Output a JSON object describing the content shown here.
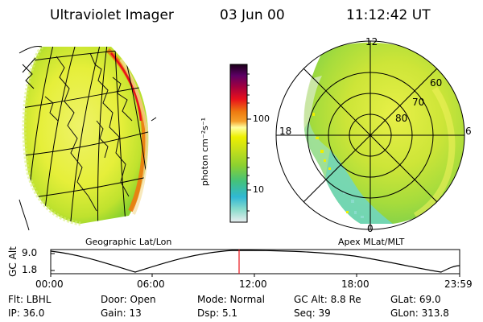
{
  "header": {
    "title": "Ultraviolet Imager",
    "date": "03 Jun 00",
    "time": "11:12:42 UT"
  },
  "geo_panel": {
    "label": "Geographic Lat/Lon"
  },
  "polar_panel": {
    "label": "Apex MLat/MLT",
    "mlt_labels": [
      "12",
      "18",
      "6",
      "0"
    ],
    "lat_labels": [
      "60",
      "70",
      "80"
    ]
  },
  "colorbar": {
    "unit": "photon cm⁻²s⁻¹",
    "ticks": [
      "100",
      "10"
    ],
    "colors": [
      "#e9eef0",
      "#8adccc",
      "#30b8d4",
      "#44c27a",
      "#8cd030",
      "#c6e01a",
      "#eef000",
      "#ffffa0",
      "#f5a02a",
      "#ee7a10",
      "#e8101c",
      "#a00040",
      "#5c0064",
      "#1a0018"
    ]
  },
  "altitude_plot": {
    "axis_title": "GC Alt",
    "y_ticks": [
      "9.0",
      "1.8"
    ],
    "x_ticks": [
      "00:00",
      "06:00",
      "12:00",
      "18:00",
      "23:59"
    ],
    "current_marker_time": "11:12:42",
    "marker_color": "#e8141c"
  },
  "info": {
    "row1": {
      "flt": "Flt: LBHL",
      "door": "Door: Open",
      "mode": "Mode: Normal",
      "gcalt": "GC Alt: 8.8 Re",
      "glat": "GLat:  69.0"
    },
    "row2": {
      "ip": "IP: 36.0",
      "gain": "Gain: 13",
      "dsp": "Dsp:     5.1",
      "seq": "Seq: 39",
      "glon": "GLon: 313.8"
    }
  }
}
